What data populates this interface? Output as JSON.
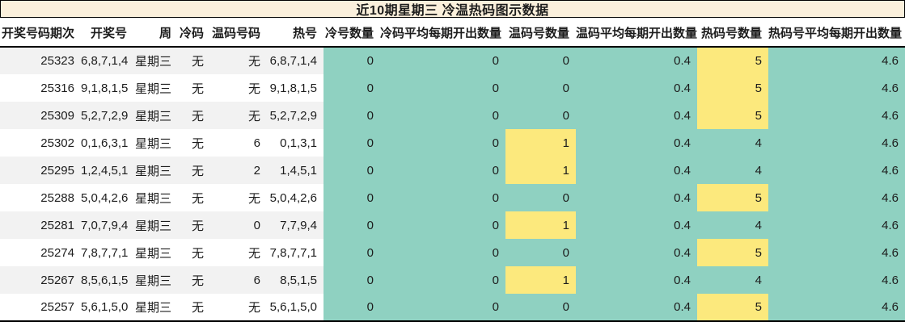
{
  "title": "近10期星期三 冷温热码图示数据",
  "colors": {
    "title_bg": "#fbf0dc",
    "teal": "#8fd1c1",
    "highlight_yellow": "#fce97d",
    "stripe_gray": "#f2f2f2",
    "border": "#000000"
  },
  "chart_data": {
    "type": "table",
    "title": "近10期星期三 冷温热码图示数据",
    "columns": [
      "开奖号码期次",
      "开奖号",
      "周",
      "冷码",
      "温码号码",
      "热号",
      "冷号数量",
      "冷码平均每期开出数量",
      "温码号数量",
      "温码平均每期开出数量",
      "热码号数量",
      "热码号平均每期开出数量"
    ],
    "column_keys": [
      "period",
      "draw_numbers",
      "weekday",
      "cold_numbers",
      "warm_numbers",
      "hot_numbers",
      "cold_count",
      "cold_avg",
      "warm_count",
      "warm_avg",
      "hot_count",
      "hot_avg"
    ],
    "rows": [
      {
        "period": "25323",
        "draw_numbers": "6,8,7,1,4",
        "weekday": "星期三",
        "cold_numbers": "无",
        "warm_numbers": "无",
        "hot_numbers": "6,8,7,1,4",
        "cold_count": "0",
        "cold_avg": "0",
        "warm_count": "0",
        "warm_avg": "0.4",
        "hot_count": "5",
        "hot_avg": "4.6",
        "highlight": [
          "hot_count"
        ]
      },
      {
        "period": "25316",
        "draw_numbers": "9,1,8,1,5",
        "weekday": "星期三",
        "cold_numbers": "无",
        "warm_numbers": "无",
        "hot_numbers": "9,1,8,1,5",
        "cold_count": "0",
        "cold_avg": "0",
        "warm_count": "0",
        "warm_avg": "0.4",
        "hot_count": "5",
        "hot_avg": "4.6",
        "highlight": [
          "hot_count"
        ]
      },
      {
        "period": "25309",
        "draw_numbers": "5,2,7,2,9",
        "weekday": "星期三",
        "cold_numbers": "无",
        "warm_numbers": "无",
        "hot_numbers": "5,2,7,2,9",
        "cold_count": "0",
        "cold_avg": "0",
        "warm_count": "0",
        "warm_avg": "0.4",
        "hot_count": "5",
        "hot_avg": "4.6",
        "highlight": [
          "hot_count"
        ]
      },
      {
        "period": "25302",
        "draw_numbers": "0,1,6,3,1",
        "weekday": "星期三",
        "cold_numbers": "无",
        "warm_numbers": "6",
        "hot_numbers": "0,1,3,1",
        "cold_count": "0",
        "cold_avg": "0",
        "warm_count": "1",
        "warm_avg": "0.4",
        "hot_count": "4",
        "hot_avg": "4.6",
        "highlight": [
          "warm_count"
        ]
      },
      {
        "period": "25295",
        "draw_numbers": "1,2,4,5,1",
        "weekday": "星期三",
        "cold_numbers": "无",
        "warm_numbers": "2",
        "hot_numbers": "1,4,5,1",
        "cold_count": "0",
        "cold_avg": "0",
        "warm_count": "1",
        "warm_avg": "0.4",
        "hot_count": "4",
        "hot_avg": "4.6",
        "highlight": [
          "warm_count"
        ]
      },
      {
        "period": "25288",
        "draw_numbers": "5,0,4,2,6",
        "weekday": "星期三",
        "cold_numbers": "无",
        "warm_numbers": "无",
        "hot_numbers": "5,0,4,2,6",
        "cold_count": "0",
        "cold_avg": "0",
        "warm_count": "0",
        "warm_avg": "0.4",
        "hot_count": "5",
        "hot_avg": "4.6",
        "highlight": [
          "hot_count"
        ]
      },
      {
        "period": "25281",
        "draw_numbers": "7,0,7,9,4",
        "weekday": "星期三",
        "cold_numbers": "无",
        "warm_numbers": "0",
        "hot_numbers": "7,7,9,4",
        "cold_count": "0",
        "cold_avg": "0",
        "warm_count": "1",
        "warm_avg": "0.4",
        "hot_count": "4",
        "hot_avg": "4.6",
        "highlight": [
          "warm_count"
        ]
      },
      {
        "period": "25274",
        "draw_numbers": "7,8,7,7,1",
        "weekday": "星期三",
        "cold_numbers": "无",
        "warm_numbers": "无",
        "hot_numbers": "7,8,7,7,1",
        "cold_count": "0",
        "cold_avg": "0",
        "warm_count": "0",
        "warm_avg": "0.4",
        "hot_count": "5",
        "hot_avg": "4.6",
        "highlight": [
          "hot_count"
        ]
      },
      {
        "period": "25267",
        "draw_numbers": "8,5,6,1,5",
        "weekday": "星期三",
        "cold_numbers": "无",
        "warm_numbers": "6",
        "hot_numbers": "8,5,1,5",
        "cold_count": "0",
        "cold_avg": "0",
        "warm_count": "1",
        "warm_avg": "0.4",
        "hot_count": "4",
        "hot_avg": "4.6",
        "highlight": [
          "warm_count"
        ]
      },
      {
        "period": "25257",
        "draw_numbers": "5,6,1,5,0",
        "weekday": "星期三",
        "cold_numbers": "无",
        "warm_numbers": "无",
        "hot_numbers": "5,6,1,5,0",
        "cold_count": "0",
        "cold_avg": "0",
        "warm_count": "0",
        "warm_avg": "0.4",
        "hot_count": "5",
        "hot_avg": "4.6",
        "highlight": [
          "hot_count"
        ]
      }
    ]
  }
}
